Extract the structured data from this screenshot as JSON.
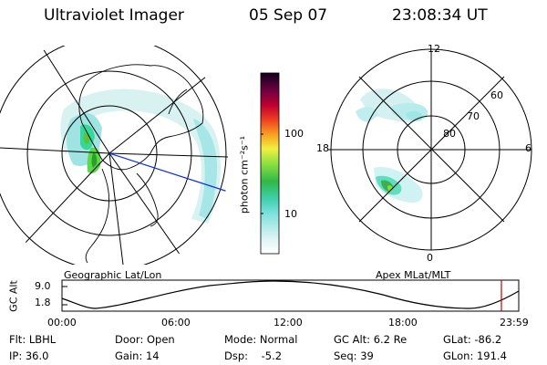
{
  "header": {
    "instrument": "Ultraviolet Imager",
    "date": "05 Sep 07",
    "time": "23:08:34 UT"
  },
  "colorbar": {
    "unit_label": "photon cm⁻²s⁻¹",
    "ticks": [
      "100",
      "10"
    ]
  },
  "apex_map": {
    "mlt_labels": [
      "12",
      "18",
      "6",
      "0"
    ],
    "mlat_labels": [
      "60",
      "70",
      "80"
    ]
  },
  "labels": {
    "geo": "Geographic Lat/Lon",
    "apex": "Apex MLat/MLT"
  },
  "altitude_plot": {
    "ylabel": "GC Alt",
    "yticks": [
      "9.0",
      "1.8"
    ],
    "xticks": [
      "00:00",
      "06:00",
      "12:00",
      "18:00",
      "23:59"
    ]
  },
  "footer": {
    "flt": "Flt: LBHL",
    "ip": "IP: 36.0",
    "door": "Door: Open",
    "gain": "Gain: 14",
    "mode": "Mode: Normal",
    "dsp": "Dsp:    -5.2",
    "gcalt": "GC Alt: 6.2 Re",
    "seq": "Seq: 39",
    "glat": "GLat: -86.2",
    "glon": "GLon: 191.4"
  }
}
